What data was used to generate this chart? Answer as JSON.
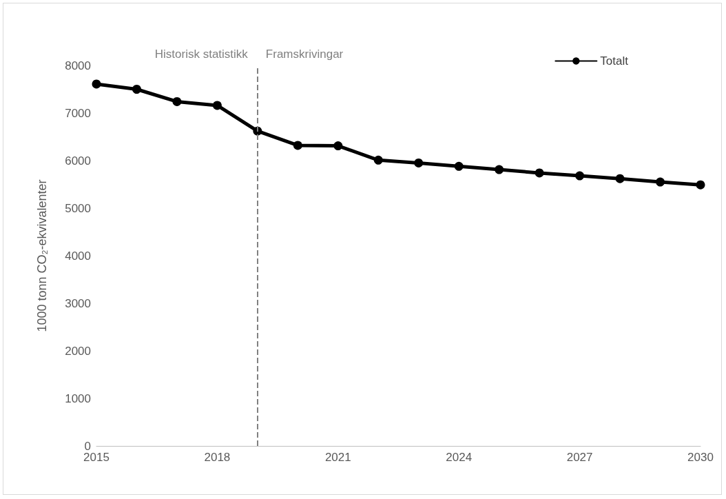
{
  "chart_data": {
    "type": "line",
    "ylabel": "1000 tonn CO₂-ekvivalenter",
    "x": [
      2015,
      2016,
      2017,
      2018,
      2019,
      2020,
      2021,
      2022,
      2023,
      2024,
      2025,
      2026,
      2027,
      2028,
      2029,
      2030
    ],
    "series": [
      {
        "name": "Totalt",
        "color": "#000000",
        "values": [
          7610,
          7500,
          7240,
          7160,
          6620,
          6320,
          6310,
          6010,
          5950,
          5880,
          5810,
          5740,
          5680,
          5620,
          5550,
          5490
        ]
      }
    ],
    "xlim": [
      2015,
      2030
    ],
    "xticks": [
      2015,
      2018,
      2021,
      2024,
      2027,
      2030
    ],
    "ylim": [
      0,
      8000
    ],
    "yticks": [
      0,
      1000,
      2000,
      3000,
      4000,
      5000,
      6000,
      7000,
      8000
    ],
    "ref_lines": [
      {
        "axis": "x",
        "value": 2019,
        "color": "#808080",
        "line_style": "dashed"
      }
    ],
    "annotations": [
      "Historisk statistikk",
      "Framskrivingar"
    ],
    "grid": false,
    "legend": "top right",
    "marker": "circle",
    "line_style": "solid"
  }
}
